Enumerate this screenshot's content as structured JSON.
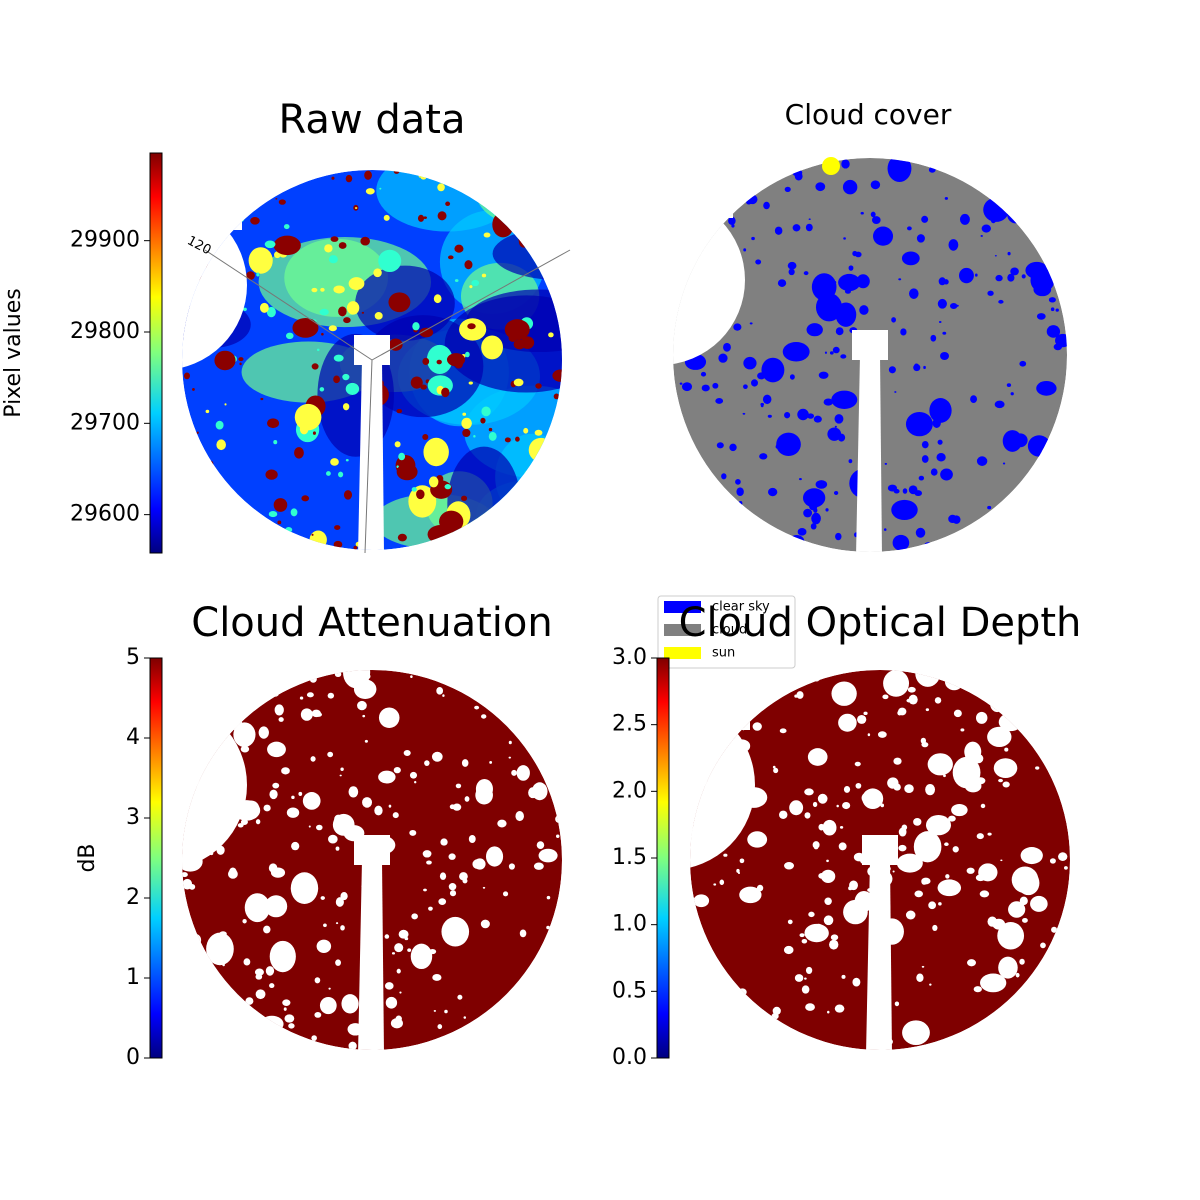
{
  "chart_data": [
    {
      "type": "image",
      "title": "Raw data",
      "colorbar_label": "Pixel values",
      "colormap": "jet",
      "clim": [
        29558,
        29996
      ],
      "cticks": [
        29600,
        29700,
        29800,
        29900
      ],
      "annotations": [
        "120"
      ]
    },
    {
      "type": "image",
      "title": "Cloud cover",
      "legend": [
        {
          "name": "clear sky",
          "color": "#0000ff"
        },
        {
          "name": "cloud",
          "color": "#808080"
        },
        {
          "name": "sun",
          "color": "#ffff00"
        }
      ]
    },
    {
      "type": "image",
      "title": "Cloud Attenuation",
      "colorbar_label": "dB",
      "colormap": "jet",
      "clim": [
        0,
        5
      ],
      "cticks": [
        0,
        1,
        2,
        3,
        4,
        5
      ]
    },
    {
      "type": "image",
      "title": "Cloud Optical Depth",
      "colormap": "jet",
      "clim": [
        0,
        3
      ],
      "cticks": [
        {
          "value": 0,
          "label": "0.0"
        },
        {
          "value": 0.5,
          "label": "0.5"
        },
        {
          "value": 1,
          "label": "1.0"
        },
        {
          "value": 1.5,
          "label": "1.5"
        },
        {
          "value": 2,
          "label": "2.0"
        },
        {
          "value": 2.5,
          "label": "2.5"
        },
        {
          "value": 3,
          "label": "3.0"
        }
      ]
    }
  ]
}
